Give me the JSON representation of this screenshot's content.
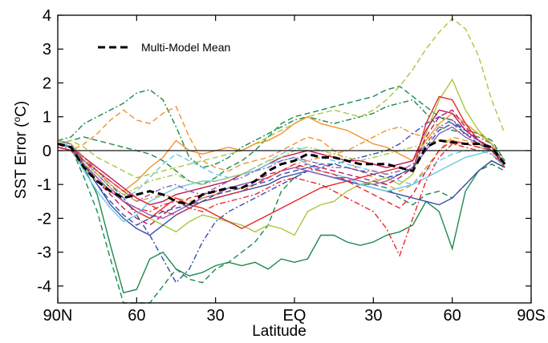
{
  "chart_data": {
    "type": "line",
    "xlabel": "Latitude",
    "ylabel": "SST Error (",
    "ylabel_sup": "o",
    "ylabel_unit": "C)",
    "xlim": [
      -90,
      90
    ],
    "ylim": [
      -4.5,
      4
    ],
    "x_ticks": [
      {
        "value": -90,
        "label": "90N"
      },
      {
        "value": -60,
        "label": "60"
      },
      {
        "value": -30,
        "label": "30"
      },
      {
        "value": 0,
        "label": "EQ"
      },
      {
        "value": 30,
        "label": "30"
      },
      {
        "value": 60,
        "label": "60"
      },
      {
        "value": 90,
        "label": "90S"
      }
    ],
    "y_ticks": [
      -4,
      -3,
      -2,
      -1,
      0,
      1,
      2,
      3,
      4
    ],
    "zero_line": true,
    "legend": {
      "placement": "top-left",
      "entries": [
        "Multi-Model Mean"
      ]
    },
    "mean_series": {
      "name": "Multi-Model Mean",
      "color": "#000000",
      "x": [
        -90,
        -85,
        -80,
        -75,
        -70,
        -65,
        -60,
        -55,
        -50,
        -45,
        -40,
        -35,
        -30,
        -25,
        -20,
        -15,
        -10,
        -5,
        0,
        5,
        10,
        15,
        20,
        25,
        30,
        35,
        40,
        45,
        50,
        55,
        60,
        65,
        70,
        75,
        80
      ],
      "y": [
        0.2,
        0.1,
        -0.5,
        -0.9,
        -1.2,
        -1.4,
        -1.3,
        -1.2,
        -1.3,
        -1.5,
        -1.6,
        -1.3,
        -1.2,
        -1.1,
        -1.1,
        -0.9,
        -0.6,
        -0.4,
        -0.3,
        -0.1,
        -0.2,
        -0.2,
        -0.3,
        -0.4,
        -0.4,
        -0.4,
        -0.5,
        -0.6,
        0.1,
        0.3,
        0.25,
        0.2,
        0.2,
        0.1,
        -0.4
      ]
    },
    "series": [
      {
        "color": "#1b8a4b",
        "dash": "solid",
        "y": [
          0.3,
          0.2,
          -0.5,
          -1.3,
          -2.8,
          -4.2,
          -4.1,
          -3.2,
          -3.0,
          -3.5,
          -3.7,
          -3.6,
          -3.4,
          -3.3,
          -3.4,
          -3.3,
          -3.5,
          -3.2,
          -3.3,
          -3.2,
          -2.5,
          -2.5,
          -2.7,
          -2.8,
          -2.7,
          -2.5,
          -2.4,
          -2.2,
          -1.5,
          -1.8,
          -2.9,
          -1.2,
          -0.6,
          -0.3,
          -0.5
        ]
      },
      {
        "color": "#1b8a4b",
        "dash": "dashed",
        "y": [
          0.2,
          0.1,
          -0.8,
          -1.8,
          -3.2,
          -4.6,
          -4.8,
          -4.6,
          -4.0,
          -3.5,
          -3.8,
          -3.9,
          -3.5,
          -3.3,
          -3.0,
          -2.7,
          -2.2,
          -1.2,
          -0.8,
          -0.6,
          -0.7,
          -0.8,
          -0.9,
          -1.0,
          -1.0,
          -1.1,
          -1.4,
          -1.6,
          -1.3,
          -1.2,
          -1.4,
          -1.0,
          -0.6,
          -0.4,
          -0.6
        ]
      },
      {
        "color": "#1b8a4b",
        "dash": "dashdot",
        "y": [
          0.3,
          0.4,
          0.8,
          1.0,
          1.2,
          1.4,
          1.7,
          1.8,
          1.5,
          0.7,
          -0.2,
          -0.5,
          -0.4,
          -0.2,
          0.1,
          0.3,
          0.5,
          0.7,
          0.9,
          1.0,
          0.9,
          0.8,
          0.9,
          1.0,
          1.1,
          1.3,
          1.4,
          1.5,
          1.1,
          0.7,
          0.6,
          0.5,
          0.4,
          0.2,
          -0.3
        ]
      },
      {
        "color": "#1b8a4b",
        "dash": "dashed",
        "y": [
          0.2,
          0.3,
          0.4,
          0.3,
          0.2,
          0.1,
          0.0,
          -0.1,
          -0.3,
          -0.6,
          -0.9,
          -1.0,
          -0.8,
          -0.5,
          -0.3,
          0.0,
          0.4,
          0.8,
          1.0,
          1.1,
          1.2,
          1.3,
          1.4,
          1.5,
          1.6,
          1.8,
          1.9,
          1.6,
          1.3,
          1.0,
          0.8,
          0.6,
          0.5,
          0.3,
          -0.3
        ]
      },
      {
        "color": "#a9c73b",
        "dash": "dashed",
        "y": [
          0.2,
          0.3,
          0.1,
          -0.2,
          -0.4,
          -0.6,
          -0.8,
          -0.7,
          -0.6,
          -0.5,
          -0.4,
          -0.3,
          -0.2,
          -0.1,
          0.0,
          0.2,
          0.4,
          0.6,
          0.8,
          1.0,
          1.1,
          1.2,
          1.1,
          1.0,
          1.2,
          1.5,
          1.9,
          2.4,
          3.0,
          3.5,
          3.9,
          3.6,
          2.8,
          1.5,
          0.5
        ]
      },
      {
        "color": "#a9c73b",
        "dash": "solid",
        "y": [
          0.1,
          0.0,
          -0.5,
          -0.9,
          -1.2,
          -1.5,
          -1.8,
          -2.0,
          -2.2,
          -2.4,
          -2.1,
          -1.9,
          -2.0,
          -2.1,
          -2.2,
          -2.4,
          -2.2,
          -2.3,
          -2.5,
          -1.8,
          -1.6,
          -1.5,
          -1.2,
          -1.0,
          -0.9,
          -0.8,
          -1.0,
          -0.7,
          0.5,
          1.5,
          2.1,
          1.2,
          0.6,
          0.2,
          -0.5
        ]
      },
      {
        "color": "#f0932b",
        "dash": "solid",
        "y": [
          0.2,
          0.1,
          -0.3,
          -0.6,
          -0.9,
          -1.2,
          -0.9,
          -0.5,
          -0.2,
          0.3,
          0.0,
          -0.1,
          0.0,
          0.1,
          0.0,
          0.2,
          0.3,
          0.5,
          0.8,
          1.0,
          0.8,
          0.7,
          0.6,
          0.4,
          0.2,
          0.1,
          -0.1,
          -0.3,
          0.3,
          0.8,
          1.1,
          0.8,
          0.5,
          0.2,
          -0.4
        ]
      },
      {
        "color": "#f0932b",
        "dash": "dashed",
        "y": [
          0.1,
          0.0,
          0.2,
          0.5,
          0.9,
          1.2,
          0.9,
          0.8,
          1.1,
          1.3,
          0.4,
          -0.3,
          -0.5,
          -0.6,
          -0.4,
          -0.3,
          -0.2,
          0.0,
          0.2,
          0.4,
          0.3,
          0.0,
          -0.3,
          -0.6,
          -0.8,
          -1.0,
          -1.2,
          -1.0,
          -0.5,
          0.0,
          0.4,
          0.3,
          0.2,
          0.1,
          -0.4
        ]
      },
      {
        "color": "#e8262b",
        "dash": "solid",
        "y": [
          0.1,
          0.0,
          -0.3,
          -0.7,
          -1.1,
          -1.5,
          -1.8,
          -2.0,
          -1.7,
          -1.4,
          -1.6,
          -1.7,
          -1.9,
          -2.1,
          -2.3,
          -2.1,
          -1.9,
          -1.7,
          -1.5,
          -1.3,
          -1.1,
          -1.0,
          -0.9,
          -0.8,
          -0.7,
          -0.6,
          -0.5,
          -0.6,
          0.8,
          1.6,
          1.5,
          0.8,
          0.3,
          0.0,
          -0.4
        ]
      },
      {
        "color": "#e8262b",
        "dash": "dashdot",
        "y": [
          0.2,
          0.0,
          -0.4,
          -0.8,
          -1.2,
          -1.5,
          -1.7,
          -1.8,
          -1.6,
          -1.5,
          -1.7,
          -1.8,
          -1.6,
          -1.5,
          -1.4,
          -1.3,
          -1.1,
          -0.9,
          -0.8,
          -0.9,
          -1.0,
          -1.2,
          -1.4,
          -1.6,
          -1.8,
          -2.3,
          -3.1,
          -2.0,
          -0.9,
          -0.2,
          0.2,
          0.1,
          0.0,
          -0.1,
          -0.5
        ]
      },
      {
        "color": "#3a4ea8",
        "dash": "solid",
        "y": [
          0.3,
          0.2,
          -0.4,
          -1.0,
          -1.6,
          -2.0,
          -2.3,
          -2.5,
          -2.2,
          -1.9,
          -1.7,
          -1.5,
          -1.4,
          -1.3,
          -1.2,
          -1.1,
          -1.0,
          -0.8,
          -0.7,
          -0.6,
          -0.7,
          -0.8,
          -0.9,
          -1.0,
          -1.1,
          -1.2,
          -1.3,
          -1.4,
          -1.5,
          -1.6,
          -1.4,
          -1.0,
          -0.6,
          -0.3,
          -0.5
        ]
      },
      {
        "color": "#3a4ea8",
        "dash": "dashdot",
        "y": [
          0.2,
          0.1,
          -0.2,
          -0.6,
          -1.0,
          -1.4,
          -1.9,
          -2.5,
          -3.2,
          -3.9,
          -3.5,
          -2.7,
          -2.1,
          -1.8,
          -1.6,
          -1.4,
          -1.2,
          -1.0,
          -0.8,
          -0.6,
          -0.5,
          -0.4,
          -0.3,
          -0.2,
          -0.1,
          0.0,
          0.2,
          0.5,
          0.8,
          1.0,
          0.9,
          0.6,
          0.3,
          0.1,
          -0.4
        ]
      },
      {
        "color": "#c2185b",
        "dash": "solid",
        "y": [
          0.2,
          0.1,
          -0.2,
          -0.5,
          -0.8,
          -1.1,
          -1.4,
          -1.6,
          -1.5,
          -1.3,
          -1.2,
          -1.1,
          -1.0,
          -0.9,
          -0.7,
          -0.6,
          -0.4,
          -0.2,
          -0.1,
          0.0,
          -0.1,
          -0.2,
          -0.3,
          -0.3,
          -0.4,
          -0.5,
          -0.4,
          -0.3,
          0.6,
          1.2,
          1.1,
          0.6,
          0.3,
          0.1,
          -0.4
        ]
      },
      {
        "color": "#c2185b",
        "dash": "dashed",
        "y": [
          0.1,
          0.0,
          -0.4,
          -0.9,
          -1.3,
          -1.7,
          -2.0,
          -2.2,
          -1.9,
          -1.6,
          -1.4,
          -1.3,
          -1.2,
          -1.1,
          -1.0,
          -0.9,
          -0.7,
          -0.6,
          -0.5,
          -0.4,
          -0.5,
          -0.6,
          -0.7,
          -0.8,
          -0.9,
          -1.0,
          -0.8,
          -0.5,
          0.4,
          1.0,
          1.2,
          0.7,
          0.3,
          0.1,
          -0.5
        ]
      },
      {
        "color": "#6ac8e6",
        "dash": "solid",
        "y": [
          0.3,
          0.1,
          -0.6,
          -1.2,
          -1.7,
          -2.1,
          -1.9,
          -1.5,
          -1.3,
          -1.1,
          -1.0,
          -0.9,
          -0.9,
          -0.8,
          -0.7,
          -0.6,
          -0.4,
          -0.3,
          -0.2,
          -0.4,
          -0.6,
          -0.7,
          -0.8,
          -1.0,
          -1.1,
          -1.2,
          -1.1,
          -1.0,
          -0.8,
          -0.6,
          -0.4,
          -0.2,
          -0.1,
          0.0,
          -0.5
        ]
      },
      {
        "color": "#6ac8e6",
        "dash": "dashed",
        "y": [
          0.2,
          0.2,
          -0.3,
          -0.7,
          -1.1,
          -1.4,
          -1.2,
          -0.8,
          -0.4,
          -0.1,
          -0.3,
          -0.5,
          -0.7,
          -0.8,
          -0.7,
          -0.5,
          -0.3,
          -0.1,
          0.1,
          0.0,
          -0.2,
          -0.3,
          -0.4,
          -0.5,
          -0.6,
          -0.7,
          -0.9,
          -1.0,
          -0.6,
          -0.3,
          -0.1,
          0.0,
          0.0,
          -0.1,
          -0.5
        ]
      },
      {
        "color": "#8e5bb8",
        "dash": "solid",
        "y": [
          0.2,
          0.1,
          -0.4,
          -0.8,
          -1.2,
          -1.5,
          -1.7,
          -1.9,
          -2.0,
          -1.8,
          -1.6,
          -1.4,
          -1.3,
          -1.1,
          -1.0,
          -0.9,
          -0.8,
          -0.6,
          -0.5,
          -0.6,
          -0.7,
          -0.8,
          -0.8,
          -0.9,
          -1.0,
          -0.9,
          -0.7,
          -0.5,
          0.0,
          0.5,
          0.7,
          0.4,
          0.2,
          0.0,
          -0.4
        ]
      },
      {
        "color": "#8e5bb8",
        "dash": "dashdot",
        "y": [
          0.2,
          0.1,
          -0.3,
          -0.6,
          -0.9,
          -1.2,
          -1.5,
          -1.3,
          -1.1,
          -1.0,
          -1.2,
          -1.3,
          -1.1,
          -0.9,
          -0.8,
          -0.6,
          -0.5,
          -0.3,
          -0.2,
          -0.3,
          -0.4,
          -0.5,
          -0.5,
          -0.6,
          -0.6,
          -0.7,
          -0.6,
          -0.4,
          0.2,
          0.7,
          0.9,
          0.5,
          0.3,
          0.1,
          -0.4
        ]
      },
      {
        "color": "#f0932b",
        "dash": "dashdot",
        "y": [
          0.3,
          0.2,
          -0.2,
          -0.6,
          -1.0,
          -1.3,
          -1.5,
          -1.4,
          -1.3,
          -1.4,
          -1.5,
          -1.4,
          -1.3,
          -1.2,
          -1.1,
          -1.0,
          -0.8,
          -0.6,
          -0.4,
          -0.3,
          -0.2,
          -0.1,
          0.0,
          0.2,
          0.4,
          0.6,
          0.7,
          0.5,
          0.4,
          0.3,
          0.2,
          0.2,
          0.1,
          0.0,
          -0.4
        ]
      },
      {
        "color": "#a9c73b",
        "dash": "dashdot",
        "y": [
          0.2,
          0.1,
          -0.4,
          -0.7,
          -1.0,
          -1.3,
          -1.1,
          -0.9,
          -0.8,
          -0.7,
          -0.9,
          -1.0,
          -0.9,
          -0.8,
          -0.7,
          -0.5,
          -0.3,
          -0.2,
          0.0,
          0.1,
          0.0,
          -0.1,
          -0.2,
          -0.3,
          -0.2,
          -0.1,
          0.0,
          0.1,
          0.2,
          0.3,
          0.3,
          0.2,
          0.1,
          0.0,
          -0.4
        ]
      },
      {
        "color": "#e8262b",
        "dash": "dashed",
        "y": [
          0.2,
          0.1,
          -0.3,
          -0.6,
          -0.9,
          -1.2,
          -1.4,
          -1.6,
          -1.8,
          -1.9,
          -1.7,
          -1.5,
          -1.4,
          -1.3,
          -1.2,
          -1.0,
          -0.8,
          -0.6,
          -0.4,
          -0.5,
          -0.6,
          -0.7,
          -0.9,
          -1.1,
          -1.3,
          -1.5,
          -1.7,
          -1.3,
          -0.6,
          0.0,
          0.3,
          0.2,
          0.1,
          0.0,
          -0.5
        ]
      },
      {
        "color": "#3a4ea8",
        "dash": "dashed",
        "y": [
          0.2,
          0.1,
          -0.5,
          -1.0,
          -1.5,
          -1.9,
          -2.2,
          -2.0,
          -1.8,
          -1.7,
          -1.6,
          -1.5,
          -1.3,
          -1.2,
          -1.1,
          -1.0,
          -0.9,
          -0.7,
          -0.6,
          -0.5,
          -0.4,
          -0.4,
          -0.5,
          -0.6,
          -0.7,
          -0.8,
          -0.7,
          -0.5,
          0.1,
          0.6,
          0.8,
          0.5,
          0.2,
          0.0,
          -0.4
        ]
      }
    ]
  }
}
